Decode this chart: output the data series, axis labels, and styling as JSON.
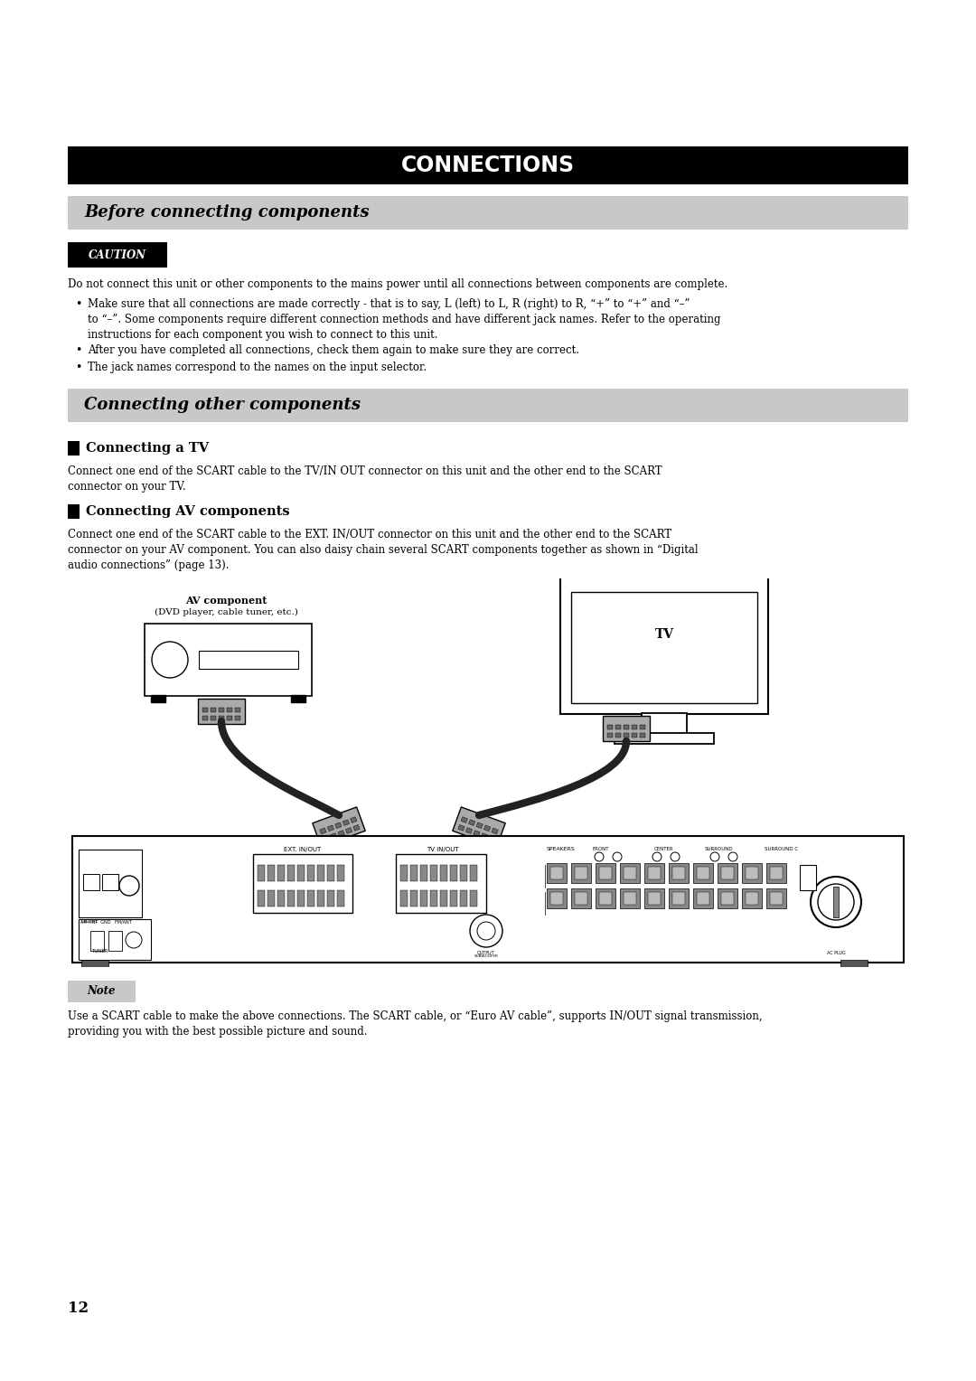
{
  "title": "CONNECTIONS",
  "section1": "Before connecting components",
  "caution_label": "CAUTION",
  "caution_text": "Do not connect this unit or other components to the mains power until all connections between components are complete.",
  "bullet1": "Make sure that all connections are made correctly - that is to say, L (left) to L, R (right) to R, “+” to “+” and “–”\nto “–”. Some components require different connection methods and have different jack names. Refer to the operating\ninstructions for each component you wish to connect to this unit.",
  "bullet2": "After you have completed all connections, check them again to make sure they are correct.",
  "bullet3": "The jack names correspond to the names on the input selector.",
  "section2": "Connecting other components",
  "sub1": "Connecting a TV",
  "sub1_text": "Connect one end of the SCART cable to the TV/IN OUT connector on this unit and the other end to the SCART\nconnector on your TV.",
  "sub2": "Connecting AV components",
  "sub2_text": "Connect one end of the SCART cable to the EXT. IN/OUT connector on this unit and the other end to the SCART\nconnector on your AV component. You can also daisy chain several SCART components together as shown in “Digital\naudio connections” (page 13).",
  "av_label1": "AV component",
  "av_label2": "(DVD player, cable tuner, etc.)",
  "tv_label": "TV",
  "note_label": "Note",
  "note_text": "Use a SCART cable to make the above connections. The SCART cable, or “Euro AV cable”, supports IN/OUT signal transmission,\nproviding you with the best possible picture and sound.",
  "page_num": "12",
  "bg_color": "#ffffff",
  "title_bg": "#000000",
  "title_fg": "#ffffff",
  "section_bg": "#c8c8c8",
  "section_fg": "#000000",
  "caution_bg": "#000000",
  "caution_fg": "#ffffff",
  "note_bg": "#c8c8c8",
  "note_fg": "#000000",
  "body_color": "#000000"
}
